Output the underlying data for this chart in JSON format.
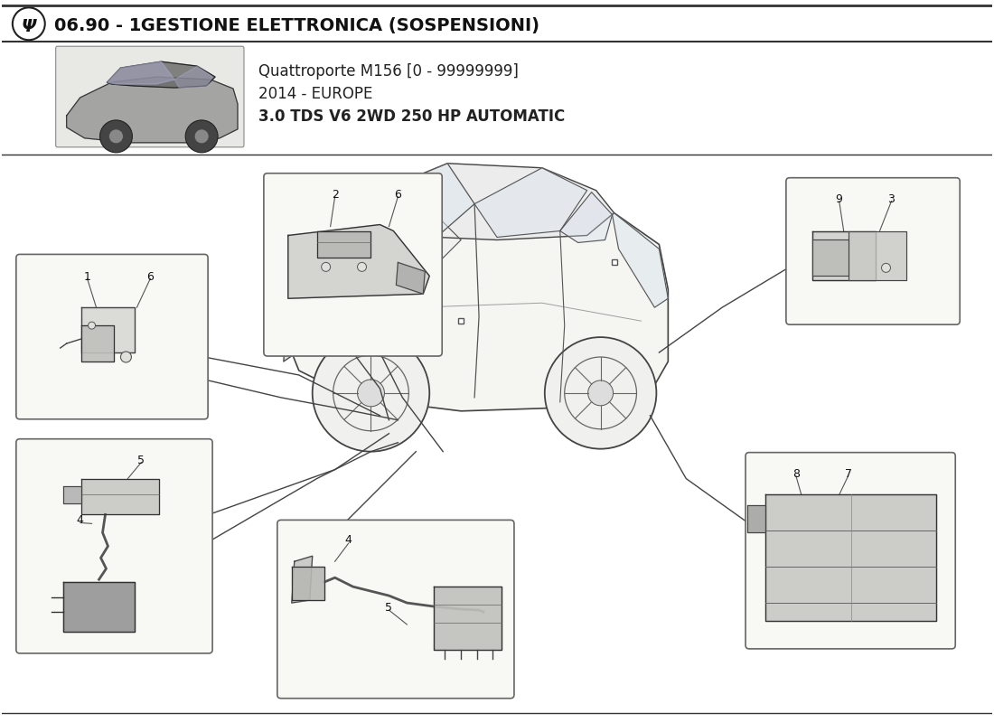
{
  "title_number": "06.90 - 1",
  "title_text": " GESTIONE ELETTRONICA (SOSPENSIONI)",
  "subtitle_line1": "Quattroporte M156 [0 - 99999999]",
  "subtitle_line2": "2014 - EUROPE",
  "subtitle_line3": "3.0 TDS V6 2WD 250 HP AUTOMATIC",
  "bg_color": "#ffffff",
  "line_color": "#333333",
  "callout_bg": "#f8f8f5",
  "callout_border": "#555555"
}
